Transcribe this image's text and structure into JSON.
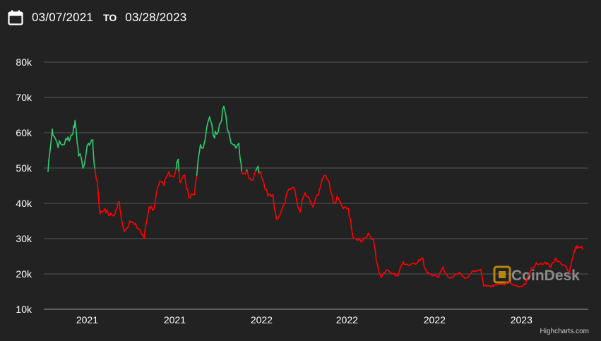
{
  "date_range": {
    "from": "03/07/2021",
    "separator": "TO",
    "to": "03/28/2023",
    "icon": "calendar-icon"
  },
  "watermark": {
    "text": "CoinDesk",
    "icon": "coindesk-logo-icon",
    "color": "#b8860b"
  },
  "credit": "Highcharts.com",
  "colors": {
    "background": "#222222",
    "up": "#2ecc71",
    "down": "#ff0000",
    "grid": "#555555"
  },
  "chart_data": {
    "type": "line",
    "title": "",
    "xlabel": "",
    "ylabel": "",
    "ylim": [
      10000,
      80000
    ],
    "y_ticks": [
      10000,
      20000,
      30000,
      40000,
      50000,
      60000,
      70000,
      80000
    ],
    "y_tick_labels": [
      "10k",
      "20k",
      "30k",
      "40k",
      "50k",
      "60k",
      "70k",
      "80k"
    ],
    "x_range": [
      "2021-03-07",
      "2023-03-28"
    ],
    "x_ticks": [
      "2021-05-01",
      "2021-09-01",
      "2022-01-01",
      "2022-05-01",
      "2022-09-01",
      "2023-01-01"
    ],
    "x_tick_labels": [
      "2021",
      "2021",
      "2022",
      "2022",
      "2022",
      "2023"
    ],
    "grid": true,
    "legend": "none",
    "series": [
      {
        "color_rule": "green above 49,000, red below",
        "points": [
          [
            "2021-03-07",
            49000
          ],
          [
            "2021-03-13",
            61000
          ],
          [
            "2021-03-20",
            57000
          ],
          [
            "2021-03-27",
            56500
          ],
          [
            "2021-04-03",
            58000
          ],
          [
            "2021-04-10",
            59500
          ],
          [
            "2021-04-14",
            63500
          ],
          [
            "2021-04-18",
            56000
          ],
          [
            "2021-04-25",
            50000
          ],
          [
            "2021-05-03",
            57000
          ],
          [
            "2021-05-09",
            58000
          ],
          [
            "2021-05-12",
            49500
          ],
          [
            "2021-05-15",
            46500
          ],
          [
            "2021-05-19",
            37000
          ],
          [
            "2021-05-26",
            38500
          ],
          [
            "2021-06-02",
            36500
          ],
          [
            "2021-06-09",
            37000
          ],
          [
            "2021-06-15",
            40500
          ],
          [
            "2021-06-22",
            32000
          ],
          [
            "2021-06-30",
            35000
          ],
          [
            "2021-07-07",
            34000
          ],
          [
            "2021-07-14",
            32500
          ],
          [
            "2021-07-20",
            30000
          ],
          [
            "2021-07-27",
            39000
          ],
          [
            "2021-08-03",
            38500
          ],
          [
            "2021-08-10",
            45500
          ],
          [
            "2021-08-17",
            45000
          ],
          [
            "2021-08-24",
            49000
          ],
          [
            "2021-08-31",
            47500
          ],
          [
            "2021-09-06",
            52500
          ],
          [
            "2021-09-08",
            46500
          ],
          [
            "2021-09-15",
            48000
          ],
          [
            "2021-09-21",
            41500
          ],
          [
            "2021-09-29",
            42500
          ],
          [
            "2021-10-06",
            55000
          ],
          [
            "2021-10-13",
            57500
          ],
          [
            "2021-10-20",
            64500
          ],
          [
            "2021-10-27",
            58500
          ],
          [
            "2021-11-03",
            62500
          ],
          [
            "2021-11-09",
            67500
          ],
          [
            "2021-11-16",
            60000
          ],
          [
            "2021-11-23",
            56500
          ],
          [
            "2021-11-30",
            57000
          ],
          [
            "2021-12-04",
            49000
          ],
          [
            "2021-12-11",
            49500
          ],
          [
            "2021-12-18",
            46500
          ],
          [
            "2021-12-27",
            50500
          ],
          [
            "2022-01-03",
            46500
          ],
          [
            "2022-01-10",
            42000
          ],
          [
            "2022-01-17",
            42500
          ],
          [
            "2022-01-22",
            35500
          ],
          [
            "2022-01-29",
            38000
          ],
          [
            "2022-02-08",
            44000
          ],
          [
            "2022-02-15",
            44500
          ],
          [
            "2022-02-24",
            37500
          ],
          [
            "2022-03-03",
            43000
          ],
          [
            "2022-03-14",
            39000
          ],
          [
            "2022-03-22",
            42500
          ],
          [
            "2022-03-29",
            47500
          ],
          [
            "2022-04-05",
            46500
          ],
          [
            "2022-04-12",
            40000
          ],
          [
            "2022-04-19",
            41500
          ],
          [
            "2022-04-26",
            38500
          ],
          [
            "2022-05-03",
            38500
          ],
          [
            "2022-05-09",
            31000
          ],
          [
            "2022-05-16",
            29500
          ],
          [
            "2022-05-23",
            29500
          ],
          [
            "2022-05-31",
            31500
          ],
          [
            "2022-06-07",
            30000
          ],
          [
            "2022-06-13",
            22500
          ],
          [
            "2022-06-18",
            19000
          ],
          [
            "2022-06-25",
            21000
          ],
          [
            "2022-07-05",
            20000
          ],
          [
            "2022-07-12",
            19500
          ],
          [
            "2022-07-19",
            23500
          ],
          [
            "2022-07-26",
            22500
          ],
          [
            "2022-08-02",
            23000
          ],
          [
            "2022-08-09",
            23500
          ],
          [
            "2022-08-15",
            24500
          ],
          [
            "2022-08-20",
            21000
          ],
          [
            "2022-08-27",
            20000
          ],
          [
            "2022-09-06",
            19000
          ],
          [
            "2022-09-13",
            22000
          ],
          [
            "2022-09-20",
            19000
          ],
          [
            "2022-09-27",
            19000
          ],
          [
            "2022-10-05",
            20300
          ],
          [
            "2022-10-12",
            19100
          ],
          [
            "2022-10-19",
            19200
          ],
          [
            "2022-10-26",
            20800
          ],
          [
            "2022-11-05",
            21300
          ],
          [
            "2022-11-09",
            16500
          ],
          [
            "2022-11-16",
            16700
          ],
          [
            "2022-11-23",
            16500
          ],
          [
            "2022-11-30",
            17200
          ],
          [
            "2022-12-07",
            17000
          ],
          [
            "2022-12-14",
            17800
          ],
          [
            "2022-12-21",
            16800
          ],
          [
            "2022-12-31",
            16500
          ],
          [
            "2023-01-07",
            17000
          ],
          [
            "2023-01-14",
            20900
          ],
          [
            "2023-01-21",
            22700
          ],
          [
            "2023-01-28",
            23000
          ],
          [
            "2023-02-04",
            23300
          ],
          [
            "2023-02-11",
            21800
          ],
          [
            "2023-02-18",
            24500
          ],
          [
            "2023-02-25",
            23200
          ],
          [
            "2023-03-04",
            22300
          ],
          [
            "2023-03-10",
            20200
          ],
          [
            "2023-03-13",
            24100
          ],
          [
            "2023-03-17",
            26900
          ],
          [
            "2023-03-20",
            28000
          ],
          [
            "2023-03-24",
            27500
          ],
          [
            "2023-03-28",
            27000
          ]
        ]
      }
    ]
  }
}
